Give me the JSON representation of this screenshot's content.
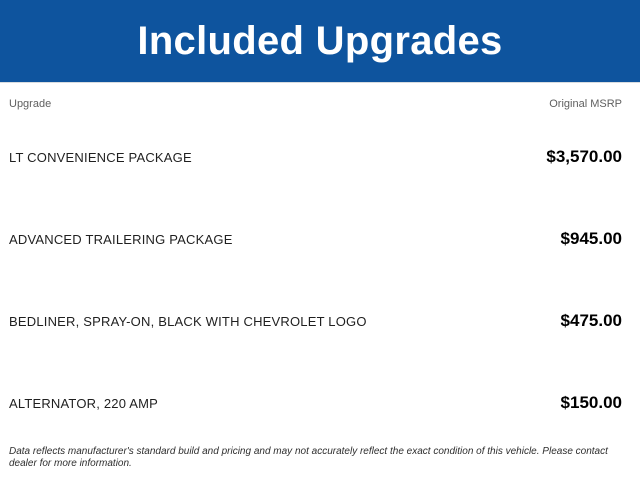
{
  "header": {
    "title": "Included Upgrades",
    "background_color": "#0E549E",
    "text_color": "#FFFFFF"
  },
  "table": {
    "columns": {
      "upgrade_label": "Upgrade",
      "msrp_label": "Original MSRP"
    },
    "rows": [
      {
        "name": "LT CONVENIENCE PACKAGE",
        "price": "$3,570.00"
      },
      {
        "name": "ADVANCED TRAILERING PACKAGE",
        "price": "$945.00"
      },
      {
        "name": "BEDLINER, SPRAY-ON, BLACK WITH CHEVROLET LOGO",
        "price": "$475.00"
      },
      {
        "name": "ALTERNATOR, 220 AMP",
        "price": "$150.00"
      }
    ]
  },
  "footer": {
    "disclaimer": "Data reflects manufacturer's standard build and pricing and may not accurately reflect the exact condition of this vehicle. Please contact dealer for more information."
  }
}
